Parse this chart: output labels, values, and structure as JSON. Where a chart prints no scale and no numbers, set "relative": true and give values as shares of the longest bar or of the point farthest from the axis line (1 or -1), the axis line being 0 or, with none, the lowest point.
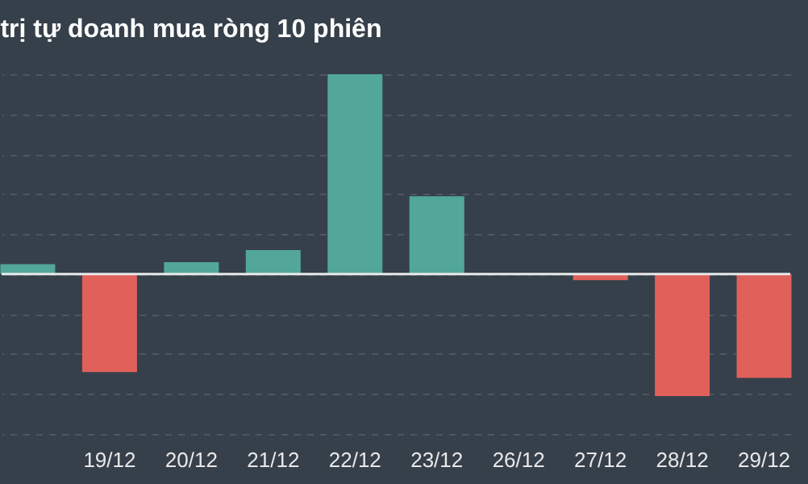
{
  "chart_data": {
    "type": "bar",
    "title": "trị tự doanh mua ròng 10 phiên",
    "relative": true,
    "grid": "y",
    "categories": [
      null,
      "19/12",
      "20/12",
      "21/12",
      "22/12",
      "23/12",
      "26/12",
      "27/12",
      "28/12",
      "29/12"
    ],
    "values": [
      0.05,
      -0.49,
      0.06,
      0.12,
      1,
      0.39,
      0,
      -0.03,
      -0.61,
      -0.52
    ],
    "colors": [
      "#52a79a",
      "#e0605a",
      "#52a79a",
      "#52a79a",
      "#52a79a",
      "#52a79a",
      "#e0605a",
      "#e0605a",
      "#e0605a",
      "#e0605a"
    ]
  }
}
